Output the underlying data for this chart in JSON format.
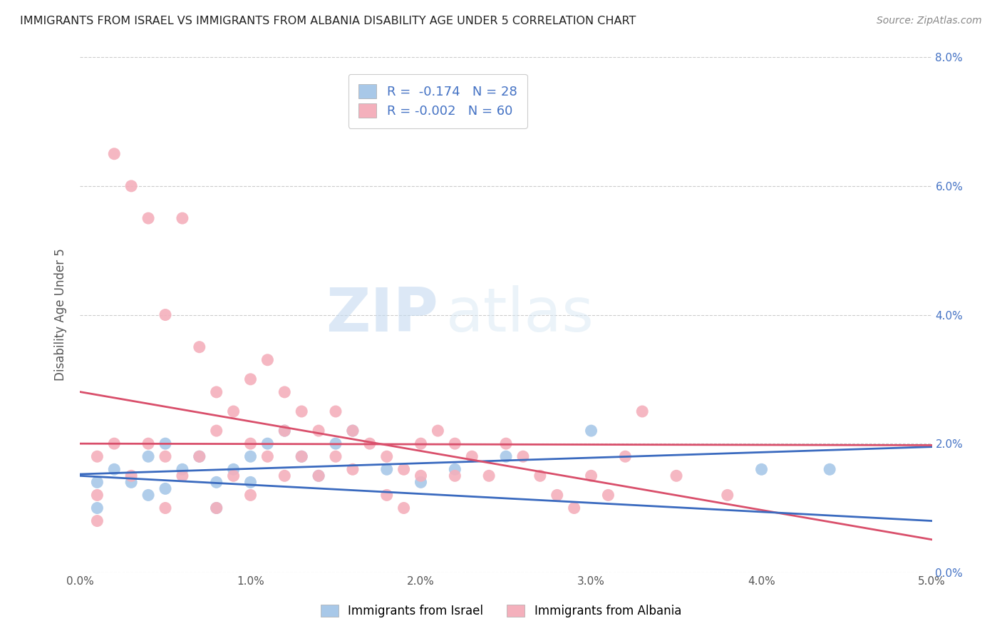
{
  "title": "IMMIGRANTS FROM ISRAEL VS IMMIGRANTS FROM ALBANIA DISABILITY AGE UNDER 5 CORRELATION CHART",
  "source": "Source: ZipAtlas.com",
  "ylabel": "Disability Age Under 5",
  "xlim": [
    0.0,
    0.05
  ],
  "ylim": [
    0.0,
    0.08
  ],
  "xtick_labels": [
    "0.0%",
    "1.0%",
    "2.0%",
    "3.0%",
    "4.0%",
    "5.0%"
  ],
  "xtick_vals": [
    0.0,
    0.01,
    0.02,
    0.03,
    0.04,
    0.05
  ],
  "ytick_labels": [
    "0.0%",
    "2.0%",
    "4.0%",
    "6.0%",
    "8.0%"
  ],
  "ytick_vals": [
    0.0,
    0.02,
    0.04,
    0.06,
    0.08
  ],
  "legend_labels": [
    "Immigrants from Israel",
    "Immigrants from Albania"
  ],
  "R_israel": -0.174,
  "N_israel": 28,
  "R_albania": -0.002,
  "N_albania": 60,
  "color_israel": "#a8c8e8",
  "color_albania": "#f4b0bc",
  "line_color_israel": "#3a6abf",
  "line_color_albania": "#d94f6b",
  "watermark_left": "ZIP",
  "watermark_right": "atlas",
  "background_color": "#ffffff",
  "israel_x": [
    0.001,
    0.001,
    0.002,
    0.003,
    0.004,
    0.004,
    0.005,
    0.005,
    0.006,
    0.007,
    0.008,
    0.008,
    0.009,
    0.01,
    0.01,
    0.011,
    0.012,
    0.013,
    0.014,
    0.015,
    0.016,
    0.018,
    0.02,
    0.022,
    0.025,
    0.03,
    0.04,
    0.044
  ],
  "israel_y": [
    0.014,
    0.01,
    0.016,
    0.014,
    0.012,
    0.018,
    0.02,
    0.013,
    0.016,
    0.018,
    0.014,
    0.01,
    0.016,
    0.018,
    0.014,
    0.02,
    0.022,
    0.018,
    0.015,
    0.02,
    0.022,
    0.016,
    0.014,
    0.016,
    0.018,
    0.022,
    0.016,
    0.016
  ],
  "albania_x": [
    0.001,
    0.001,
    0.001,
    0.002,
    0.002,
    0.003,
    0.003,
    0.004,
    0.004,
    0.005,
    0.005,
    0.005,
    0.006,
    0.006,
    0.007,
    0.007,
    0.008,
    0.008,
    0.008,
    0.009,
    0.009,
    0.01,
    0.01,
    0.01,
    0.011,
    0.011,
    0.012,
    0.012,
    0.012,
    0.013,
    0.013,
    0.014,
    0.014,
    0.015,
    0.015,
    0.016,
    0.016,
    0.017,
    0.018,
    0.018,
    0.019,
    0.019,
    0.02,
    0.02,
    0.021,
    0.022,
    0.022,
    0.023,
    0.024,
    0.025,
    0.026,
    0.027,
    0.028,
    0.029,
    0.03,
    0.031,
    0.032,
    0.033,
    0.035,
    0.038
  ],
  "albania_y": [
    0.018,
    0.012,
    0.008,
    0.065,
    0.02,
    0.06,
    0.015,
    0.055,
    0.02,
    0.04,
    0.018,
    0.01,
    0.055,
    0.015,
    0.035,
    0.018,
    0.028,
    0.022,
    0.01,
    0.025,
    0.015,
    0.03,
    0.02,
    0.012,
    0.033,
    0.018,
    0.028,
    0.022,
    0.015,
    0.025,
    0.018,
    0.022,
    0.015,
    0.025,
    0.018,
    0.022,
    0.016,
    0.02,
    0.018,
    0.012,
    0.016,
    0.01,
    0.02,
    0.015,
    0.022,
    0.02,
    0.015,
    0.018,
    0.015,
    0.02,
    0.018,
    0.015,
    0.012,
    0.01,
    0.015,
    0.012,
    0.018,
    0.025,
    0.015,
    0.012
  ]
}
